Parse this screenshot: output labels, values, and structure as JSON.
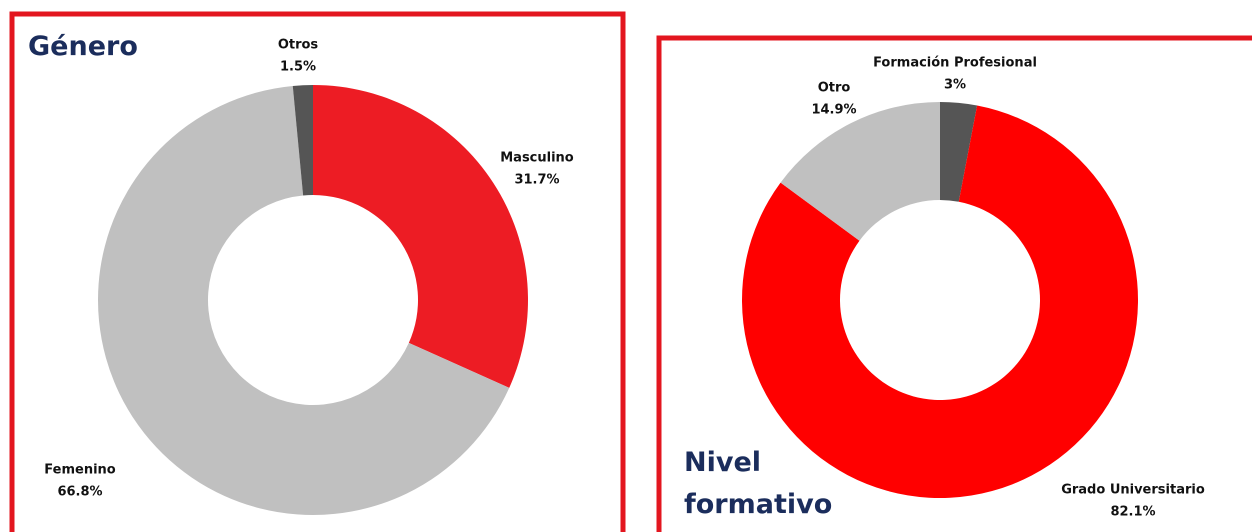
{
  "chart_data": [
    {
      "type": "donut",
      "title": "Género",
      "categories": [
        "Masculino",
        "Femenino",
        "Otros"
      ],
      "values": [
        31.7,
        66.8,
        1.5
      ],
      "value_labels": [
        "31.7%",
        "66.8%",
        "1.5%"
      ],
      "colors": [
        "#ed1c24",
        "#c0c0c0",
        "#555555"
      ]
    },
    {
      "type": "donut",
      "title": "Nivel formativo",
      "categories": [
        "Formación Profesional",
        "Grado Universitario",
        "Otro"
      ],
      "values": [
        3,
        82.1,
        14.9
      ],
      "value_labels": [
        "3%",
        "82.1%",
        "14.9%"
      ],
      "colors": [
        "#555555",
        "#ff0000",
        "#c0c0c0"
      ]
    }
  ]
}
